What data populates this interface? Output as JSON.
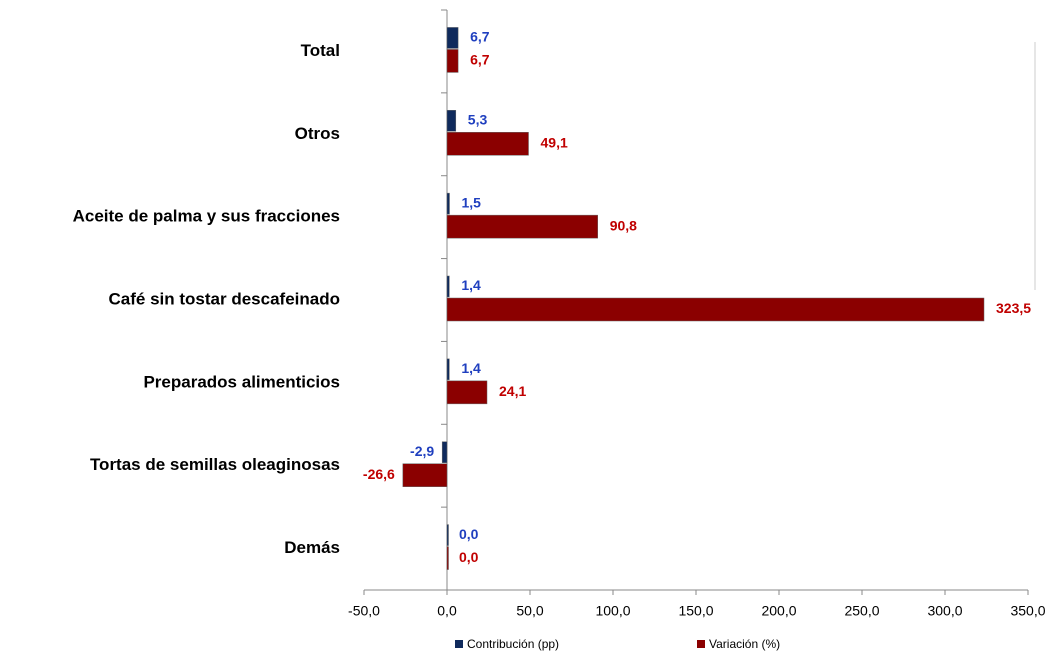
{
  "chart_data": {
    "type": "hbar",
    "categories": [
      "Total",
      "Otros",
      "Aceite de palma y sus fracciones",
      "Café sin tostar descafeinado",
      "Preparados alimenticios",
      "Tortas de semillas oleaginosas",
      "Demás"
    ],
    "series": [
      {
        "name": "Contribución (pp)",
        "color": "#0f2a5c",
        "label_color": "#1f3fbf",
        "values": [
          6.7,
          5.3,
          1.5,
          1.4,
          1.4,
          -2.9,
          0.0
        ],
        "value_labels": [
          "6,7",
          "5,3",
          "1,5",
          "1,4",
          "1,4",
          "-2,9",
          "0,0"
        ]
      },
      {
        "name": "Variación (%)",
        "color": "#8b0000",
        "label_color": "#c00000",
        "values": [
          6.7,
          49.1,
          90.8,
          323.5,
          24.1,
          -26.6,
          0.0
        ],
        "value_labels": [
          "6,7",
          "49,1",
          "90,8",
          "323,5",
          "24,1",
          "-26,6",
          "0,0"
        ]
      }
    ],
    "xlim": [
      -50,
      350
    ],
    "xticks": [
      {
        "value": -50,
        "label": "-50,0"
      },
      {
        "value": 0,
        "label": "0,0"
      },
      {
        "value": 50,
        "label": "50,0"
      },
      {
        "value": 100,
        "label": "100,0"
      },
      {
        "value": 150,
        "label": "150,0"
      },
      {
        "value": 200,
        "label": "200,0"
      },
      {
        "value": 250,
        "label": "250,0"
      },
      {
        "value": 300,
        "label": "300,0"
      },
      {
        "value": 350,
        "label": "350,0"
      }
    ],
    "legend": "bottom"
  }
}
